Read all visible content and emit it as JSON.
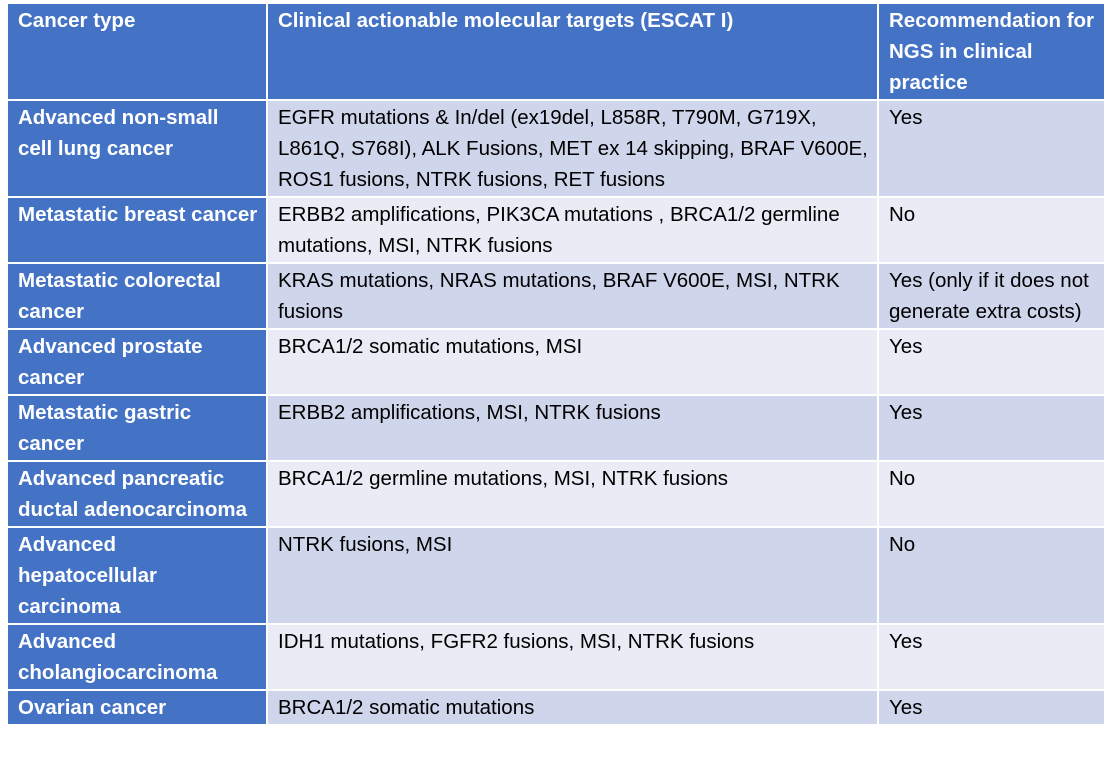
{
  "table": {
    "headers": [
      "Cancer type",
      "Clinical actionable molecular targets (ESCAT I)",
      "Recommendation for NGS in clinical practice"
    ],
    "rows": [
      {
        "cancer_type": "Advanced non-small cell lung cancer",
        "targets": "EGFR mutations & In/del (ex19del, L858R, T790M, G719X, L861Q, S768I), ALK Fusions, MET ex 14 skipping, BRAF V600E, ROS1 fusions, NTRK fusions, RET fusions",
        "recommendation": "Yes"
      },
      {
        "cancer_type": "Metastatic breast cancer",
        "targets": "ERBB2 amplifications, PIK3CA mutations , BRCA1/2 germline mutations, MSI, NTRK fusions",
        "recommendation": "No"
      },
      {
        "cancer_type": "Metastatic colorectal cancer",
        "targets": "KRAS mutations, NRAS mutations, BRAF V600E, MSI, NTRK fusions",
        "recommendation": "Yes (only if it does not generate extra costs)"
      },
      {
        "cancer_type": "Advanced prostate cancer",
        "targets": "BRCA1/2 somatic mutations, MSI",
        "recommendation": "Yes"
      },
      {
        "cancer_type": "Metastatic gastric cancer",
        "targets": "ERBB2 amplifications, MSI, NTRK fusions",
        "recommendation": "Yes"
      },
      {
        "cancer_type": "Advanced pancreatic ductal adenocarcinoma",
        "targets": "BRCA1/2 germline mutations, MSI, NTRK fusions",
        "recommendation": "No"
      },
      {
        "cancer_type": "Advanced hepatocellular carcinoma",
        "targets": "NTRK fusions, MSI",
        "recommendation": "No"
      },
      {
        "cancer_type": "Advanced cholangiocarcinoma",
        "targets": "IDH1 mutations, FGFR2 fusions, MSI, NTRK fusions",
        "recommendation": "Yes"
      },
      {
        "cancer_type": "Ovarian cancer",
        "targets": "BRCA1/2 somatic mutations",
        "recommendation": "Yes"
      }
    ]
  },
  "colors": {
    "header_bg": "#4472c4",
    "row_odd_bg": "#cfd5ea",
    "row_even_bg": "#e9ebf5",
    "header_text": "#ffffff"
  }
}
